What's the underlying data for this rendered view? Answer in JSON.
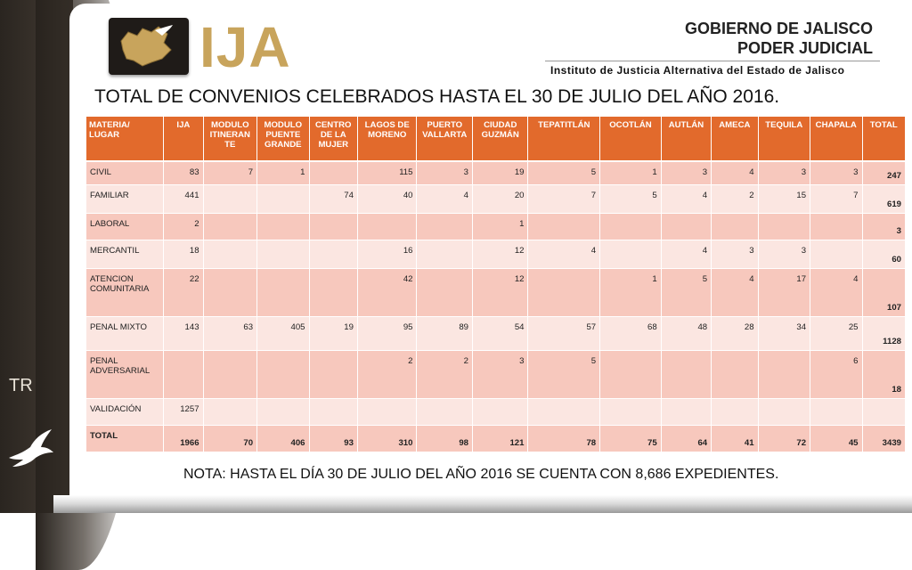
{
  "header": {
    "logo_text": "IJA",
    "gov_line1": "GOBIERNO DE JALISCO",
    "gov_line2": "PODER JUDICIAL",
    "institute": "Instituto de Justicia Alternativa del Estado de Jalisco"
  },
  "title": "TOTAL DE CONVENIOS CELEBRADOS HASTA EL 30 DE JULIO DEL AÑO 2016.",
  "table": {
    "headers": [
      "MATERIA/ LUGAR",
      "IJA",
      "MODULO ITINERAN TE",
      "MODULO PUENTE GRANDE",
      "CENTRO DE LA MUJER",
      "LAGOS DE MORENO",
      "PUERTO VALLARTA",
      "CIUDAD GUZMÁN",
      "TEPATITLÁN",
      "OCOTLÁN",
      "AUTLÁN",
      "AMECA",
      "TEQUILA",
      "CHAPALA",
      "TOTAL"
    ],
    "rows": [
      [
        "CIVIL",
        "83",
        "7",
        "1",
        "",
        "115",
        "3",
        "19",
        "5",
        "1",
        "3",
        "4",
        "3",
        "3",
        "247"
      ],
      [
        "FAMILIAR",
        "441",
        "",
        "",
        "74",
        "40",
        "4",
        "20",
        "7",
        "5",
        "4",
        "2",
        "15",
        "7",
        "619"
      ],
      [
        "LABORAL",
        "2",
        "",
        "",
        "",
        "",
        "",
        "1",
        "",
        "",
        "",
        "",
        "",
        "",
        "3"
      ],
      [
        "MERCANTIL",
        "18",
        "",
        "",
        "",
        "16",
        "",
        "12",
        "4",
        "",
        "4",
        "3",
        "3",
        "",
        "60"
      ],
      [
        "ATENCION COMUNITARIA",
        "22",
        "",
        "",
        "",
        "42",
        "",
        "12",
        "",
        "1",
        "5",
        "4",
        "17",
        "4",
        "107"
      ],
      [
        "PENAL MIXTO",
        "143",
        "63",
        "405",
        "19",
        "95",
        "89",
        "54",
        "57",
        "68",
        "48",
        "28",
        "34",
        "25",
        "1128"
      ],
      [
        "PENAL ADVERSARIAL",
        "",
        "",
        "",
        "",
        "2",
        "2",
        "3",
        "5",
        "",
        "",
        "",
        "",
        "6",
        "18"
      ],
      [
        "VALIDACIÓN",
        "1257",
        "",
        "",
        "",
        "",
        "",
        "",
        "",
        "",
        "",
        "",
        "",
        "",
        ""
      ],
      [
        "TOTAL",
        "1966",
        "70",
        "406",
        "93",
        "310",
        "98",
        "121",
        "78",
        "75",
        "64",
        "41",
        "72",
        "45",
        "3439"
      ]
    ]
  },
  "note": "NOTA: HASTA EL DÍA 30 DE JULIO DEL AÑO 2016 SE CUENTA CON 8,686 EXPEDIENTES.",
  "side_text": "TR",
  "colors": {
    "header_orange": "#e26a2c",
    "row_dark": "#f7c8bd",
    "row_light": "#fbe6e1",
    "logo_gold": "#c8a45c"
  }
}
